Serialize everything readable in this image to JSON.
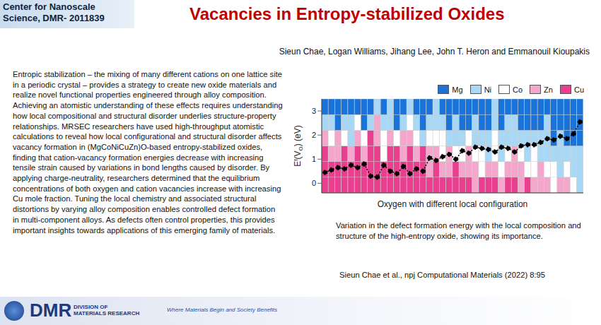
{
  "header": {
    "org": "Center for Nanoscale Science, DMR- 2011839",
    "title": "Vacancies in Entropy-stabilized Oxides",
    "authors": "Sieun Chae, Logan Williams, Jihang Lee, John T. Heron and Emmanouil Kioupakis"
  },
  "body": {
    "text": "Entropic stabilization – the mixing of many different cations on one lattice site in a periodic crystal – provides a strategy to create new oxide materials and realize novel functional properties engineered through alloy composition. Achieving an atomistic understanding of these effects requires understanding how local compositional and structural disorder underlies structure-property relationships. MRSEC researchers have used high-throughput atomistic calculations to reveal how local configurational and structural disorder affects vacancy formation in (MgCoNiCuZn)O-based entropy-stabilized oxides, finding that cation-vacancy formation energies decrease with increasing tensile strain caused by variations in bond lengths caused by disorder. By applying charge-neutrality, researchers determined that the equilibrium concentrations of both oxygen and cation vacancies increase with increasing Cu mole fraction. Tuning the local chemistry and associated structural distortions by varying alloy composition enables controlled defect formation in multi-component alloys. As defects often control properties, this provides important insights towards applications of this emerging family of materials."
  },
  "chart_data": {
    "type": "line",
    "x_label": "Oxygen with different local configuration",
    "y_label": [
      "E",
      "f",
      "(V",
      "O",
      ") (eV)"
    ],
    "categories": [
      null,
      null,
      null,
      null,
      null,
      null,
      null,
      null,
      null,
      null,
      null,
      null,
      null,
      null,
      null,
      null,
      null,
      null,
      null,
      null,
      null,
      null,
      null,
      null,
      null,
      null,
      null,
      null,
      null,
      null,
      null,
      null,
      null,
      null,
      null,
      null,
      null,
      null,
      null,
      null
    ],
    "values": [
      0.45,
      0.55,
      0.65,
      0.6,
      0.75,
      0.65,
      0.8,
      0.3,
      0.25,
      0.75,
      0.5,
      0.4,
      0.7,
      0.4,
      0.6,
      0.5,
      1.05,
      0.95,
      1.1,
      1.2,
      1.0,
      1.35,
      1.25,
      1.5,
      1.45,
      1.4,
      1.3,
      1.5,
      1.45,
      1.3,
      1.55,
      1.6,
      1.6,
      1.7,
      1.85,
      1.8,
      1.95,
      1.85,
      2.05,
      2.55
    ],
    "color": "#000000",
    "marker": "circle",
    "line_style": "dotted",
    "ylim": [
      -0.4,
      3.5
    ],
    "yticks": [
      0,
      1,
      2,
      3
    ],
    "tick_labels": "y",
    "legend": "top right",
    "cells": {
      "elements": [
        {
          "name": "Mg",
          "color": "#1a73d9"
        },
        {
          "name": "Ni",
          "color": "#a8d8f5"
        },
        {
          "name": "Co",
          "color": "#ffffff"
        },
        {
          "name": "Zn",
          "color": "#f5a6cc"
        },
        {
          "name": "Cu",
          "color": "#e8408e"
        }
      ],
      "neighbors": [
        [
          "Cu",
          "Cu",
          "Cu",
          "Zn",
          "Ni",
          "Mg"
        ],
        [
          "Cu",
          "Cu",
          "Zn",
          "Co",
          "Ni",
          "Mg"
        ],
        [
          "Cu",
          "Cu",
          "Zn",
          "Zn",
          "Mg",
          "Mg"
        ],
        [
          "Cu",
          "Cu",
          "Cu",
          "Co",
          "Ni",
          "Mg"
        ],
        [
          "Cu",
          "Cu",
          "Zn",
          "Ni",
          "Ni",
          "Mg"
        ],
        [
          "Cu",
          "Cu",
          "Cu",
          "Zn",
          "Co",
          "Mg"
        ],
        [
          "Cu",
          "Cu",
          "Zn",
          "Co",
          "Mg",
          "Mg"
        ],
        [
          "Cu",
          "Cu",
          "Cu",
          "Cu",
          "Ni",
          "Mg"
        ],
        [
          "Cu",
          "Cu",
          "Cu",
          "Zn",
          "Zn",
          "Ni"
        ],
        [
          "Cu",
          "Cu",
          "Co",
          "Co",
          "Ni",
          "Mg"
        ],
        [
          "Cu",
          "Cu",
          "Cu",
          "Zn",
          "Ni",
          "Ni"
        ],
        [
          "Cu",
          "Cu",
          "Cu",
          "Co",
          "Mg",
          "Mg"
        ],
        [
          "Cu",
          "Cu",
          "Zn",
          "Zn",
          "Ni",
          "Mg"
        ],
        [
          "Cu",
          "Cu",
          "Cu",
          "Zn",
          "Co",
          "Ni"
        ],
        [
          "Cu",
          "Cu",
          "Zn",
          "Co",
          "Ni",
          "Mg"
        ],
        [
          "Cu",
          "Cu",
          "Cu",
          "Ni",
          "Mg",
          "Mg"
        ],
        [
          "Cu",
          "Zn",
          "Zn",
          "Co",
          "Ni",
          "Mg"
        ],
        [
          "Cu",
          "Cu",
          "Zn",
          "Co",
          "Ni",
          "Ni"
        ],
        [
          "Cu",
          "Zn",
          "Co",
          "Co",
          "Ni",
          "Mg"
        ],
        [
          "Cu",
          "Zn",
          "Zn",
          "Ni",
          "Mg",
          "Mg"
        ],
        [
          "Cu",
          "Cu",
          "Co",
          "Ni",
          "Ni",
          "Mg"
        ],
        [
          "Cu",
          "Zn",
          "Co",
          "Ni",
          "Mg",
          "Mg"
        ],
        [
          "Cu",
          "Zn",
          "Zn",
          "Co",
          "Mg",
          "Mg"
        ],
        [
          "Zn",
          "Zn",
          "Co",
          "Ni",
          "Ni",
          "Mg"
        ],
        [
          "Cu",
          "Co",
          "Co",
          "Ni",
          "Mg",
          "Mg"
        ],
        [
          "Cu",
          "Zn",
          "Ni",
          "Ni",
          "Mg",
          "Mg"
        ],
        [
          "Cu",
          "Zn",
          "Co",
          "Co",
          "Ni",
          "Ni"
        ],
        [
          "Zn",
          "Co",
          "Ni",
          "Ni",
          "Mg",
          "Mg"
        ],
        [
          "Cu",
          "Zn",
          "Co",
          "Ni",
          "Ni",
          "Mg"
        ],
        [
          "Cu",
          "Zn",
          "Zn",
          "Ni",
          "Ni",
          "Mg"
        ],
        [
          "Zn",
          "Zn",
          "Co",
          "Ni",
          "Mg",
          "Mg"
        ],
        [
          "Cu",
          "Co",
          "Ni",
          "Ni",
          "Mg",
          "Mg"
        ],
        [
          "Zn",
          "Co",
          "Co",
          "Ni",
          "Mg",
          "Mg"
        ],
        [
          "Zn",
          "Zn",
          "Ni",
          "Ni",
          "Mg",
          "Mg"
        ],
        [
          "Zn",
          "Co",
          "Ni",
          "Ni",
          "Ni",
          "Mg"
        ],
        [
          "Co",
          "Co",
          "Ni",
          "Mg",
          "Mg",
          "Mg"
        ],
        [
          "Zn",
          "Ni",
          "Ni",
          "Ni",
          "Mg",
          "Mg"
        ],
        [
          "Zn",
          "Co",
          "Ni",
          "Mg",
          "Mg",
          "Mg"
        ],
        [
          "Co",
          "Ni",
          "Ni",
          "Mg",
          "Mg",
          "Mg"
        ],
        [
          "Ni",
          "Ni",
          "Ni",
          "Mg",
          "Mg",
          "Mg"
        ]
      ]
    }
  },
  "caption": "Variation in the defect formation energy with the local composition and structure of the high-entropy oxide, showing its importance.",
  "citation": "Sieun Chae et al., npj Computational Materials (2022) 8:95",
  "footer": {
    "dmr": "DMR",
    "division": "DIVISION OF",
    "materials": "MATERIALS RESEARCH",
    "tagline": "Where Materials Begin and Society Benefits"
  }
}
